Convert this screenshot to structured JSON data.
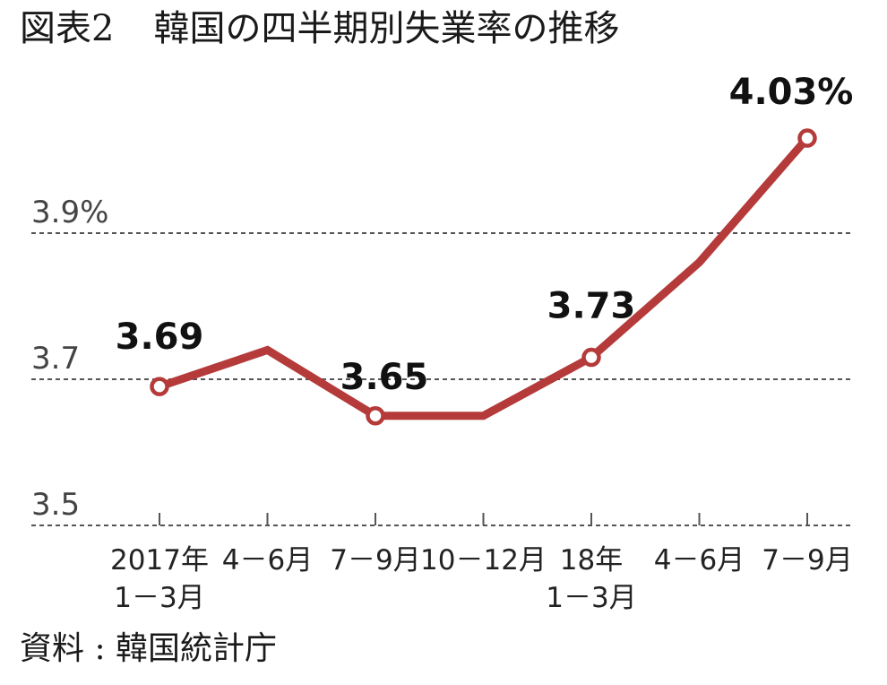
{
  "title": {
    "prefix": "図表2",
    "text": "韓国の四半期別失業率の推移"
  },
  "source": "資料 : 韓国統計庁",
  "colors": {
    "line": "#b53a3a",
    "grid": "#555555",
    "text": "#1a1a1a"
  },
  "chart_data": {
    "type": "line",
    "title": "韓国の四半期別失業率の推移",
    "xlabel": "",
    "ylabel": "",
    "ylim": [
      3.5,
      4.1
    ],
    "y_ticks": [
      {
        "value": 3.5,
        "label": "3.5"
      },
      {
        "value": 3.7,
        "label": "3.7"
      },
      {
        "value": 3.9,
        "label": "3.9%"
      }
    ],
    "grid": "dashed horizontal",
    "categories": [
      [
        "2017年",
        "1－3月"
      ],
      [
        "4－6月"
      ],
      [
        "7－9月"
      ],
      [
        "10－12月"
      ],
      [
        "18年",
        "1－3月"
      ],
      [
        "4－6月"
      ],
      [
        "7－9月"
      ]
    ],
    "series": [
      {
        "values": [
          3.69,
          3.74,
          3.65,
          3.65,
          3.73,
          3.86,
          4.03
        ],
        "markers": [
          true,
          false,
          true,
          false,
          true,
          false,
          true
        ]
      }
    ],
    "data_labels": [
      {
        "index": 0,
        "text": "3.69"
      },
      {
        "index": 2,
        "text": "3.65"
      },
      {
        "index": 4,
        "text": "3.73"
      },
      {
        "index": 6,
        "text": "4.03%"
      }
    ]
  }
}
